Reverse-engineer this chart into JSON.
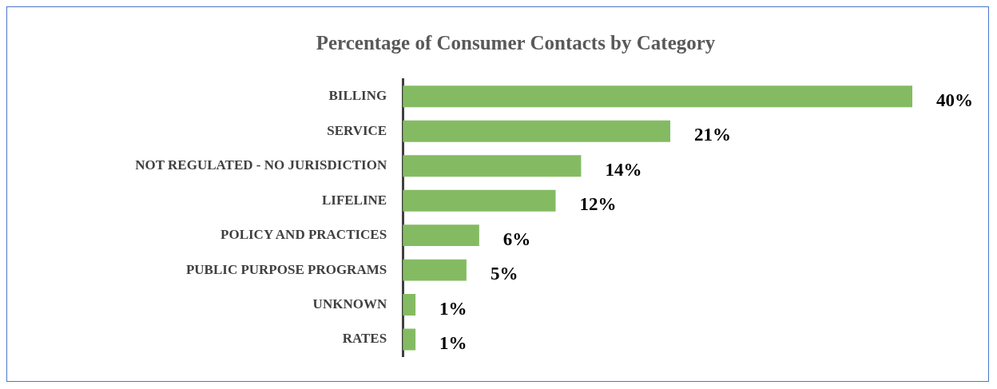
{
  "chart_data": {
    "type": "bar",
    "orientation": "horizontal",
    "title": "Percentage of Consumer Contacts by Category",
    "categories": [
      "BILLING",
      "SERVICE",
      "NOT REGULATED - NO JURISDICTION",
      "LIFELINE",
      "POLICY AND PRACTICES",
      "PUBLIC PURPOSE PROGRAMS",
      "UNKNOWN",
      "RATES"
    ],
    "values": [
      40,
      21,
      14,
      12,
      6,
      5,
      1,
      1
    ],
    "value_labels": [
      "40%",
      "21%",
      "14%",
      "12%",
      "6%",
      "5%",
      "1%",
      "1%"
    ],
    "color": "#84bb62",
    "tick_labels": "y"
  }
}
